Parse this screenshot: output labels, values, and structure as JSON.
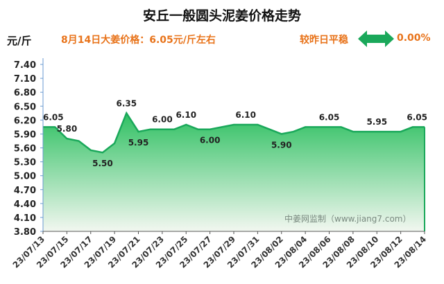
{
  "header": {
    "title": "安丘一般圆头泥姜价格走势",
    "unit": "元/斤",
    "price_note": "8月14日大姜价格：6.05元/斤左右",
    "compare_label": "较昨日平稳",
    "compare_value": "0.00%",
    "arrow_icon": "double-arrow-icon",
    "accent_color": "#e8731a",
    "arrow_color": "#1aa85a"
  },
  "watermark": "中姜网监制（www.jiang7.com）",
  "chart_data": {
    "type": "area",
    "title": "安丘一般圆头泥姜价格走势",
    "ylabel": "元/斤",
    "ylim": [
      3.8,
      7.4
    ],
    "yticks": [
      "7.40",
      "7.10",
      "6.80",
      "6.50",
      "6.20",
      "5.90",
      "5.60",
      "5.30",
      "5.00",
      "4.70",
      "4.40",
      "4.10",
      "3.80"
    ],
    "xtick_labels": [
      "23/07/13",
      "23/07/15",
      "23/07/17",
      "23/07/19",
      "23/07/21",
      "23/07/23",
      "23/07/25",
      "23/07/27",
      "23/07/29",
      "23/07/31",
      "23/08/02",
      "23/08/04",
      "23/08/06",
      "23/08/08",
      "23/08/10",
      "23/08/12",
      "23/08/14"
    ],
    "x": [
      "23/07/13",
      "23/07/14",
      "23/07/15",
      "23/07/16",
      "23/07/17",
      "23/07/18",
      "23/07/19",
      "23/07/20",
      "23/07/21",
      "23/07/22",
      "23/07/23",
      "23/07/24",
      "23/07/25",
      "23/07/26",
      "23/07/27",
      "23/07/28",
      "23/07/29",
      "23/07/30",
      "23/07/31",
      "23/08/01",
      "23/08/02",
      "23/08/03",
      "23/08/04",
      "23/08/05",
      "23/08/06",
      "23/08/07",
      "23/08/08",
      "23/08/09",
      "23/08/10",
      "23/08/11",
      "23/08/12",
      "23/08/13",
      "23/08/14"
    ],
    "values": [
      6.05,
      6.05,
      5.8,
      5.75,
      5.55,
      5.5,
      5.7,
      6.35,
      5.95,
      6.0,
      6.0,
      6.0,
      6.1,
      6.0,
      6.0,
      6.05,
      6.1,
      6.1,
      6.1,
      6.0,
      5.9,
      5.95,
      6.05,
      6.05,
      6.05,
      6.05,
      5.95,
      5.95,
      5.95,
      5.95,
      5.95,
      6.05,
      6.05
    ],
    "data_labels": [
      {
        "x": "23/07/13",
        "text": "6.05"
      },
      {
        "x": "23/07/15",
        "text": "5.80"
      },
      {
        "x": "23/07/18",
        "text": "5.50"
      },
      {
        "x": "23/07/20",
        "text": "6.35"
      },
      {
        "x": "23/07/21",
        "text": "5.95"
      },
      {
        "x": "23/07/23",
        "text": "6.00"
      },
      {
        "x": "23/07/25",
        "text": "6.10"
      },
      {
        "x": "23/07/27",
        "text": "6.00"
      },
      {
        "x": "23/07/30",
        "text": "6.10"
      },
      {
        "x": "23/08/02",
        "text": "5.90"
      },
      {
        "x": "23/08/06",
        "text": "6.05"
      },
      {
        "x": "23/08/10",
        "text": "5.95"
      },
      {
        "x": "23/08/14",
        "text": "6.05"
      }
    ],
    "line_color": "#1aa85a",
    "fill_color_top": "#2fc062",
    "fill_color_bottom": "#f2f7f0",
    "grid": false,
    "legend": "none"
  }
}
